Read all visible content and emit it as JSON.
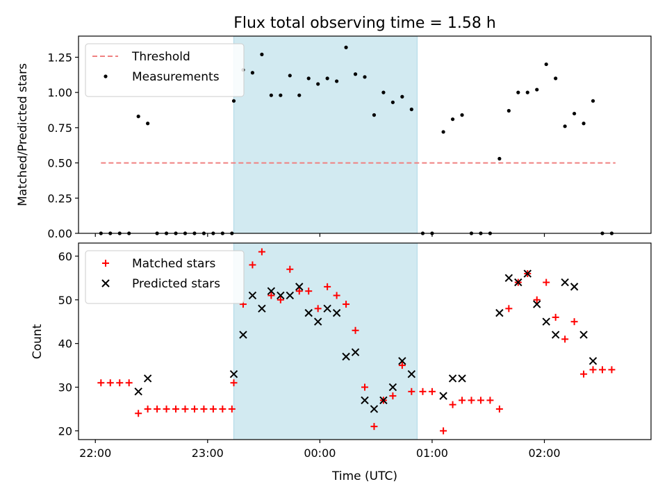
{
  "chart_data": [
    {
      "type": "scatter",
      "title": "Flux total observing time = 1.58 h",
      "ylabel": "Matched/Predicted stars",
      "xlabel": "",
      "ylim": [
        0,
        1.4
      ],
      "yticks": [
        "0.00",
        "0.25",
        "0.50",
        "0.75",
        "1.00",
        "1.25"
      ],
      "legend_position": "upper-left",
      "shaded_interval": {
        "start": "23:14",
        "end": "00:52",
        "color": "#add8e6"
      },
      "threshold": {
        "name": "Threshold",
        "value": 0.5,
        "x_start": "22:03",
        "x_end": "02:38",
        "color": "#f08080"
      },
      "series": [
        {
          "name": "Measurements",
          "color": "#000000",
          "marker": "dot",
          "points": [
            [
              "22:03",
              0.0
            ],
            [
              "22:08",
              0.0
            ],
            [
              "22:13",
              0.0
            ],
            [
              "22:18",
              0.0
            ],
            [
              "22:23",
              0.83
            ],
            [
              "22:28",
              0.78
            ],
            [
              "22:33",
              0.0
            ],
            [
              "22:38",
              0.0
            ],
            [
              "22:43",
              0.0
            ],
            [
              "22:48",
              0.0
            ],
            [
              "22:53",
              0.0
            ],
            [
              "22:58",
              0.0
            ],
            [
              "23:03",
              0.0
            ],
            [
              "23:08",
              0.0
            ],
            [
              "23:13",
              0.0
            ],
            [
              "23:14",
              0.94
            ],
            [
              "23:19",
              1.16
            ],
            [
              "23:24",
              1.14
            ],
            [
              "23:29",
              1.27
            ],
            [
              "23:34",
              0.98
            ],
            [
              "23:39",
              0.98
            ],
            [
              "23:44",
              1.12
            ],
            [
              "23:49",
              0.98
            ],
            [
              "23:54",
              1.1
            ],
            [
              "23:59",
              1.06
            ],
            [
              "00:04",
              1.1
            ],
            [
              "00:09",
              1.08
            ],
            [
              "00:14",
              1.32
            ],
            [
              "00:19",
              1.13
            ],
            [
              "00:24",
              1.11
            ],
            [
              "00:29",
              0.84
            ],
            [
              "00:34",
              1.0
            ],
            [
              "00:39",
              0.93
            ],
            [
              "00:44",
              0.97
            ],
            [
              "00:49",
              0.88
            ],
            [
              "00:55",
              0.0
            ],
            [
              "01:00",
              0.0
            ],
            [
              "01:06",
              0.72
            ],
            [
              "01:11",
              0.81
            ],
            [
              "01:16",
              0.84
            ],
            [
              "01:21",
              0.0
            ],
            [
              "01:26",
              0.0
            ],
            [
              "01:31",
              0.0
            ],
            [
              "01:36",
              0.53
            ],
            [
              "01:41",
              0.87
            ],
            [
              "01:46",
              1.0
            ],
            [
              "01:51",
              1.0
            ],
            [
              "01:56",
              1.02
            ],
            [
              "02:01",
              1.2
            ],
            [
              "02:06",
              1.1
            ],
            [
              "02:11",
              0.76
            ],
            [
              "02:16",
              0.85
            ],
            [
              "02:21",
              0.78
            ],
            [
              "02:26",
              0.94
            ],
            [
              "02:31",
              0.0
            ],
            [
              "02:36",
              0.0
            ]
          ]
        }
      ]
    },
    {
      "type": "scatter",
      "title": "",
      "ylabel": "Count",
      "xlabel": "Time (UTC)",
      "ylim": [
        18,
        63
      ],
      "yticks": [
        "20",
        "30",
        "40",
        "50",
        "60"
      ],
      "xticks": [
        "22:00",
        "23:00",
        "00:00",
        "01:00",
        "02:00"
      ],
      "legend_position": "upper-left",
      "shaded_interval": {
        "start": "23:14",
        "end": "00:52",
        "color": "#add8e6"
      },
      "series": [
        {
          "name": "Matched stars",
          "color": "#ff0000",
          "marker": "plus",
          "points": [
            [
              "22:03",
              31
            ],
            [
              "22:08",
              31
            ],
            [
              "22:13",
              31
            ],
            [
              "22:18",
              31
            ],
            [
              "22:23",
              24
            ],
            [
              "22:28",
              25
            ],
            [
              "22:33",
              25
            ],
            [
              "22:38",
              25
            ],
            [
              "22:43",
              25
            ],
            [
              "22:48",
              25
            ],
            [
              "22:53",
              25
            ],
            [
              "22:58",
              25
            ],
            [
              "23:03",
              25
            ],
            [
              "23:08",
              25
            ],
            [
              "23:13",
              25
            ],
            [
              "23:14",
              31
            ],
            [
              "23:19",
              49
            ],
            [
              "23:24",
              58
            ],
            [
              "23:29",
              61
            ],
            [
              "23:34",
              51
            ],
            [
              "23:39",
              50
            ],
            [
              "23:44",
              57
            ],
            [
              "23:49",
              52
            ],
            [
              "23:54",
              52
            ],
            [
              "23:59",
              48
            ],
            [
              "00:04",
              53
            ],
            [
              "00:09",
              51
            ],
            [
              "00:14",
              49
            ],
            [
              "00:19",
              43
            ],
            [
              "00:24",
              30
            ],
            [
              "00:29",
              21
            ],
            [
              "00:34",
              27
            ],
            [
              "00:39",
              28
            ],
            [
              "00:44",
              35
            ],
            [
              "00:49",
              29
            ],
            [
              "00:55",
              29
            ],
            [
              "01:00",
              29
            ],
            [
              "01:06",
              20
            ],
            [
              "01:11",
              26
            ],
            [
              "01:16",
              27
            ],
            [
              "01:21",
              27
            ],
            [
              "01:26",
              27
            ],
            [
              "01:31",
              27
            ],
            [
              "01:36",
              25
            ],
            [
              "01:41",
              48
            ],
            [
              "01:46",
              54
            ],
            [
              "01:51",
              56
            ],
            [
              "01:56",
              50
            ],
            [
              "02:01",
              54
            ],
            [
              "02:06",
              46
            ],
            [
              "02:11",
              41
            ],
            [
              "02:16",
              45
            ],
            [
              "02:21",
              33
            ],
            [
              "02:26",
              34
            ],
            [
              "02:31",
              34
            ],
            [
              "02:36",
              34
            ]
          ]
        },
        {
          "name": "Predicted stars",
          "color": "#000000",
          "marker": "x",
          "points": [
            [
              "22:23",
              29
            ],
            [
              "22:28",
              32
            ],
            [
              "23:14",
              33
            ],
            [
              "23:19",
              42
            ],
            [
              "23:24",
              51
            ],
            [
              "23:29",
              48
            ],
            [
              "23:34",
              52
            ],
            [
              "23:39",
              51
            ],
            [
              "23:44",
              51
            ],
            [
              "23:49",
              53
            ],
            [
              "23:54",
              47
            ],
            [
              "23:59",
              45
            ],
            [
              "00:04",
              48
            ],
            [
              "00:09",
              47
            ],
            [
              "00:14",
              37
            ],
            [
              "00:19",
              38
            ],
            [
              "00:24",
              27
            ],
            [
              "00:29",
              25
            ],
            [
              "00:34",
              27
            ],
            [
              "00:39",
              30
            ],
            [
              "00:44",
              36
            ],
            [
              "00:49",
              33
            ],
            [
              "01:06",
              28
            ],
            [
              "01:11",
              32
            ],
            [
              "01:16",
              32
            ],
            [
              "01:36",
              47
            ],
            [
              "01:41",
              55
            ],
            [
              "01:46",
              54
            ],
            [
              "01:51",
              56
            ],
            [
              "01:56",
              49
            ],
            [
              "02:01",
              45
            ],
            [
              "02:06",
              42
            ],
            [
              "02:11",
              54
            ],
            [
              "02:16",
              53
            ],
            [
              "02:21",
              42
            ],
            [
              "02:26",
              36
            ]
          ]
        }
      ]
    }
  ]
}
